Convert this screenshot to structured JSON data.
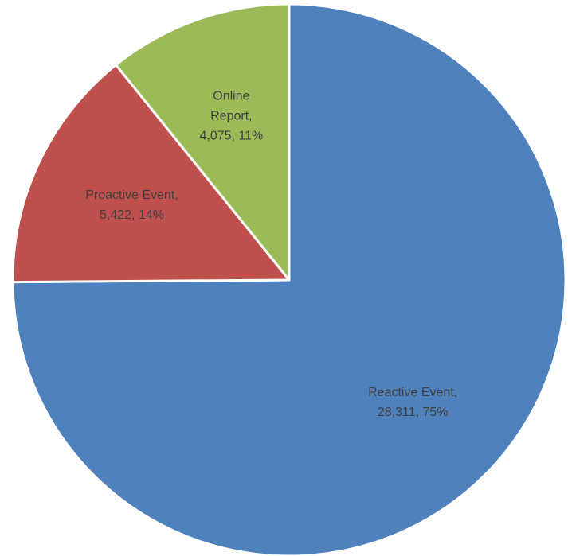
{
  "chart_data": {
    "type": "pie",
    "categories": [
      "Reactive Event",
      "Proactive Event",
      "Online Report"
    ],
    "values": [
      28311,
      5422,
      4075
    ],
    "value_labels": [
      "28,311",
      "5,422",
      "4,075"
    ],
    "percent_labels": [
      "75%",
      "14%",
      "11%"
    ],
    "label_separator": ",",
    "colors": [
      "#4f81bd",
      "#c0504d",
      "#9bbb59"
    ]
  }
}
